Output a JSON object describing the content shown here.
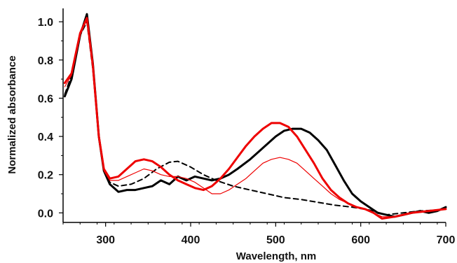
{
  "chart_data": {
    "type": "line",
    "title": "",
    "xlabel": "Wavelength, nm",
    "ylabel": "Normalized absorbance",
    "xlim": [
      250,
      700
    ],
    "ylim": [
      -0.05,
      1.07
    ],
    "grid": false,
    "legend": "none",
    "x_ticks": [
      300,
      400,
      500,
      600,
      700
    ],
    "y_ticks": [
      0.0,
      0.2,
      0.4,
      0.6,
      0.8,
      1.0
    ],
    "y_tick_labels": [
      "0.0",
      "0.2",
      "0.4",
      "0.6",
      "0.8",
      "1.0"
    ],
    "series": [
      {
        "color": "#000000",
        "style": "dashed",
        "weight": "medium",
        "x": [
          252,
          260,
          270,
          278,
          285,
          292,
          298,
          305,
          315,
          330,
          345,
          360,
          375,
          385,
          400,
          415,
          430,
          450,
          470,
          490,
          510,
          530,
          550,
          570,
          590,
          610,
          630,
          650,
          670,
          690,
          700
        ],
        "y": [
          0.62,
          0.72,
          0.93,
          1.0,
          0.75,
          0.4,
          0.22,
          0.16,
          0.14,
          0.15,
          0.18,
          0.23,
          0.265,
          0.27,
          0.24,
          0.2,
          0.17,
          0.14,
          0.12,
          0.1,
          0.08,
          0.07,
          0.055,
          0.04,
          0.03,
          0.015,
          -0.01,
          0.0,
          0.01,
          0.015,
          0.02
        ]
      },
      {
        "color": "#000000",
        "style": "solid",
        "weight": "bold",
        "x": [
          252,
          260,
          270,
          278,
          285,
          292,
          298,
          305,
          315,
          325,
          335,
          345,
          355,
          365,
          375,
          385,
          395,
          405,
          415,
          425,
          435,
          445,
          455,
          470,
          480,
          490,
          500,
          510,
          520,
          530,
          540,
          550,
          560,
          570,
          580,
          590,
          600,
          610,
          620,
          630,
          640,
          650,
          660,
          670,
          680,
          690,
          700
        ],
        "y": [
          0.61,
          0.7,
          0.93,
          1.04,
          0.78,
          0.4,
          0.22,
          0.15,
          0.11,
          0.12,
          0.12,
          0.13,
          0.14,
          0.17,
          0.15,
          0.19,
          0.17,
          0.19,
          0.18,
          0.17,
          0.18,
          0.2,
          0.23,
          0.28,
          0.32,
          0.36,
          0.4,
          0.43,
          0.44,
          0.44,
          0.42,
          0.38,
          0.33,
          0.25,
          0.17,
          0.1,
          0.06,
          0.03,
          0.0,
          -0.01,
          -0.02,
          -0.01,
          0.0,
          0.01,
          0.0,
          0.01,
          0.03
        ]
      },
      {
        "color": "#ee0000",
        "style": "solid",
        "weight": "thin",
        "x": [
          252,
          260,
          270,
          278,
          285,
          292,
          298,
          305,
          315,
          325,
          335,
          345,
          355,
          365,
          375,
          385,
          395,
          405,
          415,
          425,
          435,
          445,
          455,
          465,
          475,
          485,
          495,
          505,
          515,
          525,
          535,
          545,
          555,
          565,
          575,
          585,
          595,
          605,
          615,
          625,
          640,
          660,
          680,
          700
        ],
        "y": [
          0.66,
          0.72,
          0.93,
          1.01,
          0.76,
          0.4,
          0.22,
          0.17,
          0.17,
          0.19,
          0.21,
          0.23,
          0.22,
          0.2,
          0.19,
          0.19,
          0.18,
          0.16,
          0.13,
          0.1,
          0.1,
          0.12,
          0.15,
          0.18,
          0.22,
          0.26,
          0.28,
          0.29,
          0.28,
          0.26,
          0.22,
          0.18,
          0.14,
          0.1,
          0.07,
          0.05,
          0.03,
          0.02,
          0.0,
          -0.02,
          -0.02,
          0.0,
          0.01,
          0.02
        ]
      },
      {
        "color": "#ee0000",
        "style": "solid",
        "weight": "bold",
        "x": [
          252,
          260,
          270,
          278,
          285,
          292,
          298,
          305,
          315,
          325,
          335,
          345,
          355,
          365,
          375,
          385,
          395,
          405,
          415,
          425,
          435,
          445,
          455,
          465,
          475,
          485,
          495,
          505,
          515,
          525,
          535,
          545,
          555,
          565,
          575,
          585,
          595,
          605,
          615,
          625,
          640,
          660,
          680,
          700
        ],
        "y": [
          0.68,
          0.73,
          0.94,
          1.02,
          0.77,
          0.4,
          0.23,
          0.18,
          0.19,
          0.23,
          0.27,
          0.28,
          0.27,
          0.24,
          0.2,
          0.17,
          0.15,
          0.13,
          0.12,
          0.14,
          0.18,
          0.23,
          0.29,
          0.35,
          0.4,
          0.44,
          0.47,
          0.47,
          0.45,
          0.4,
          0.33,
          0.26,
          0.18,
          0.12,
          0.08,
          0.05,
          0.03,
          0.02,
          0.0,
          -0.03,
          -0.02,
          0.0,
          0.01,
          0.02
        ]
      }
    ]
  }
}
